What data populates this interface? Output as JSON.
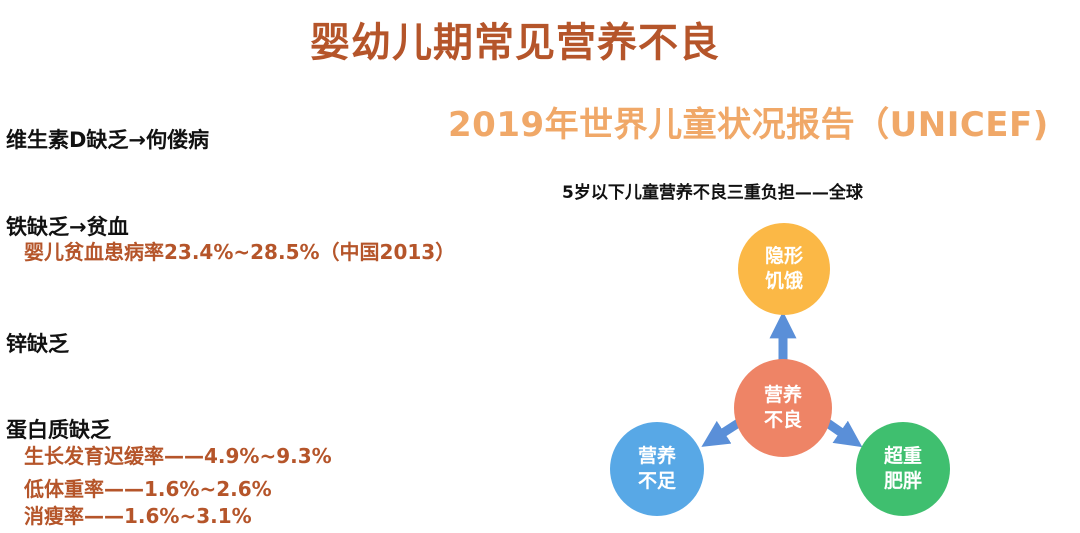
{
  "title": "婴幼儿期常见营养不良",
  "left": {
    "vitd": "维生素D缺乏→佝偻病",
    "iron": "铁缺乏→贫血",
    "iron_sub": "婴儿贫血患病率23.4%~28.5%（中国2013）",
    "zinc": "锌缺乏",
    "protein": "蛋白质缺乏",
    "protein_sub1": "生长发育迟缓率——4.9%~9.3%",
    "protein_sub2": "低体重率——1.6%~2.6%",
    "protein_sub3": "消瘦率——1.6%~3.1%"
  },
  "right": {
    "report_title": "2019年世界儿童状况报告（UNICEF)",
    "subtitle": "5岁以下儿童营养不良三重负担——全球",
    "center": {
      "line1": "营养",
      "line2": "不良",
      "color": "#ee8466"
    },
    "top": {
      "line1": "隐形",
      "line2": "饥饿",
      "color": "#fbb846"
    },
    "left": {
      "line1": "营养",
      "line2": "不足",
      "color": "#58a8e6"
    },
    "right": {
      "line1": "超重",
      "line2": "肥胖",
      "color": "#3fbf6f"
    },
    "arrow_color": "#5a8fd8"
  }
}
